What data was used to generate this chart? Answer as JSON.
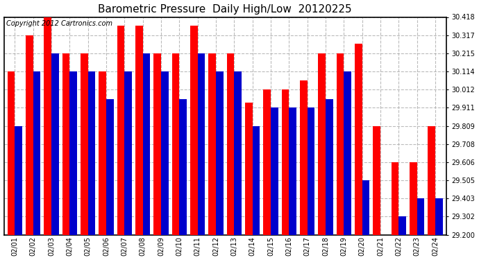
{
  "title": "Barometric Pressure  Daily High/Low  20120225",
  "copyright": "Copyright 2012 Cartronics.com",
  "dates": [
    "02/01",
    "02/02",
    "02/03",
    "02/04",
    "02/05",
    "02/06",
    "02/07",
    "02/08",
    "02/09",
    "02/10",
    "02/11",
    "02/12",
    "02/13",
    "02/14",
    "02/15",
    "02/16",
    "02/17",
    "02/18",
    "02/19",
    "02/20",
    "02/21",
    "02/22",
    "02/23",
    "02/24"
  ],
  "highs": [
    30.114,
    30.317,
    30.418,
    30.215,
    30.215,
    30.114,
    30.37,
    30.37,
    30.215,
    30.215,
    30.37,
    30.215,
    30.215,
    29.94,
    30.012,
    30.012,
    30.065,
    30.215,
    30.215,
    30.27,
    29.809,
    29.606,
    29.606,
    29.809
  ],
  "lows": [
    29.809,
    30.114,
    30.215,
    30.114,
    30.114,
    29.96,
    30.114,
    30.215,
    30.114,
    29.96,
    30.215,
    30.114,
    30.114,
    29.809,
    29.911,
    29.911,
    29.911,
    29.96,
    30.114,
    29.505,
    29.2,
    29.302,
    29.403,
    29.403
  ],
  "high_color": "#ff0000",
  "low_color": "#0000cc",
  "bg_color": "#ffffff",
  "grid_color": "#aaaaaa",
  "ylim_min": 29.2,
  "ylim_max": 30.418,
  "yticks": [
    29.2,
    29.302,
    29.403,
    29.505,
    29.606,
    29.708,
    29.809,
    29.911,
    30.012,
    30.114,
    30.215,
    30.317,
    30.418
  ],
  "title_fontsize": 11,
  "copyright_fontsize": 7,
  "bar_width": 0.4
}
